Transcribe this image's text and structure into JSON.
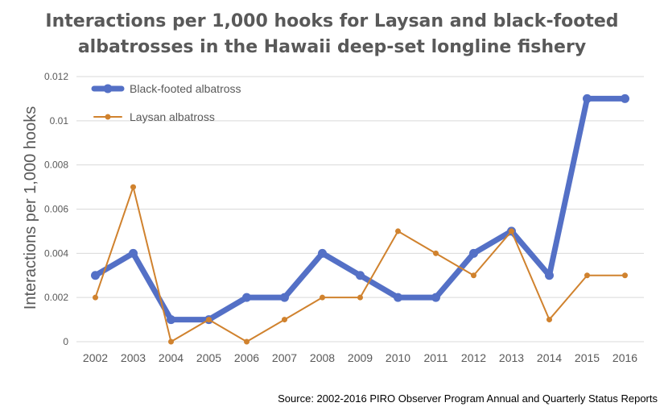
{
  "colors": {
    "black_footed": "#5470C6",
    "laysan": "#D0822E",
    "grid": "#D9D9D9",
    "axis_text": "#595959"
  },
  "chart_data": {
    "type": "line",
    "title_line_1": "Interactions per 1,000 hooks for Laysan and black-footed",
    "title_line_2": "albatrosses in the Hawaii deep-set longline fishery",
    "xlabel": "",
    "ylabel": "Interactions per 1,000 hooks",
    "categories": [
      "2002",
      "2003",
      "2004",
      "2005",
      "2006",
      "2007",
      "2008",
      "2009",
      "2010",
      "2011",
      "2012",
      "2013",
      "2014",
      "2015",
      "2016"
    ],
    "y_ticks": [
      "0",
      "0.002",
      "0.004",
      "0.006",
      "0.008",
      "0.01",
      "0.012"
    ],
    "ylim": [
      0,
      0.012
    ],
    "grid": true,
    "legend_position": "top-left",
    "series": [
      {
        "name": "Black-footed albatross",
        "values": [
          0.003,
          0.004,
          0.001,
          0.001,
          0.002,
          0.002,
          0.004,
          0.003,
          0.002,
          0.002,
          0.004,
          0.005,
          0.003,
          0.011,
          0.011
        ]
      },
      {
        "name": "Laysan albatross",
        "values": [
          0.002,
          0.007,
          0.0,
          0.001,
          0.0,
          0.001,
          0.002,
          0.002,
          0.005,
          0.004,
          0.003,
          0.005,
          0.001,
          0.003,
          0.003
        ]
      }
    ],
    "source": "Source: 2002-2016 PIRO Observer Program Annual and Quarterly Status Reports"
  }
}
